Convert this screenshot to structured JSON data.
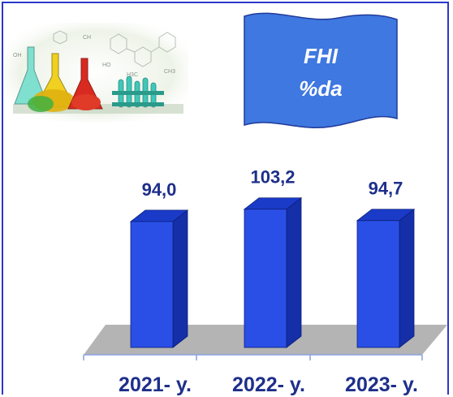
{
  "banner": {
    "line1": "FHI",
    "line2": "%da"
  },
  "colors": {
    "frame": "#2a38c8",
    "bar_front": "#2a4fe6",
    "bar_side": "#142fa8",
    "bar_top": "#1a3bc8",
    "floor": "#b4b4b4",
    "banner_fill": "#3e78e0",
    "text": "#1e2f8a"
  },
  "chart_data": {
    "type": "bar",
    "categories": [
      "2021- y.",
      "2022- y.",
      "2023- y."
    ],
    "values": [
      94.0,
      103.2,
      94.7
    ],
    "value_labels": [
      "94,0",
      "103,2",
      "94,7"
    ],
    "title": "",
    "xlabel": "",
    "ylabel": ""
  }
}
